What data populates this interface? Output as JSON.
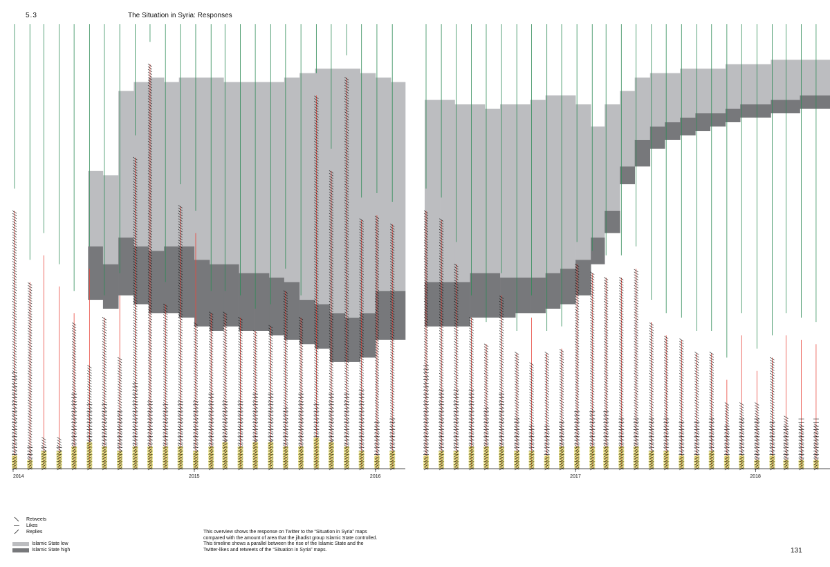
{
  "header": {
    "section_number": "5.3",
    "title": "The Situation in Syria: Responses"
  },
  "legend": {
    "marks": [
      {
        "key": "retweets",
        "label": "Retweets",
        "glyph": "backslash"
      },
      {
        "key": "likes",
        "label": "Likes",
        "glyph": "dash"
      },
      {
        "key": "replies",
        "label": "Replies",
        "glyph": "slash"
      }
    ],
    "areas": [
      {
        "key": "low",
        "label": "Islamic State low",
        "color": "#bcbdc0"
      },
      {
        "key": "high",
        "label": "Islamic State high",
        "color": "#77787b"
      }
    ]
  },
  "caption": "This overview shows the response on Twitter to the “Situation in Syria” maps compared with the amount of area that the jihadist group Islamic State controlled. This timeline shows a parallel between the rise of the Islamic State and the Twitter-likes and retweets of the “Situation in Syria” maps.",
  "page_number": "131",
  "colors": {
    "is_low": "#bcbdc0",
    "is_high": "#77787b",
    "red_line": "#e8463c",
    "green_line": "#2e8b57",
    "yellow": "#f0e040",
    "mark": "#111111"
  },
  "chart_data": {
    "type": "area",
    "panels": [
      {
        "x_start": "2014-01-01",
        "x_end": "2016-03-01",
        "year_ticks": [
          "2014",
          "2015",
          "2016"
        ],
        "stack": [
          {
            "x": "2014-01-01",
            "low_top": 0,
            "high_top": 0,
            "high_bottom": 0
          },
          {
            "x": "2014-02-01",
            "low_top": 0,
            "high_top": 0,
            "high_bottom": 0
          },
          {
            "x": "2014-03-01",
            "low_top": 0,
            "high_top": 0,
            "high_bottom": 0
          },
          {
            "x": "2014-04-01",
            "low_top": 0,
            "high_top": 0,
            "high_bottom": 0
          },
          {
            "x": "2014-05-01",
            "low_top": 0,
            "high_top": 0,
            "high_bottom": 0
          },
          {
            "x": "2014-06-01",
            "low_top": 0.67,
            "high_top": 0.5,
            "high_bottom": 0.38
          },
          {
            "x": "2014-07-01",
            "low_top": 0.66,
            "high_top": 0.46,
            "high_bottom": 0.36
          },
          {
            "x": "2014-08-01",
            "low_top": 0.85,
            "high_top": 0.52,
            "high_bottom": 0.39
          },
          {
            "x": "2014-09-01",
            "low_top": 0.87,
            "high_top": 0.5,
            "high_bottom": 0.37
          },
          {
            "x": "2014-10-01",
            "low_top": 0.88,
            "high_top": 0.49,
            "high_bottom": 0.35
          },
          {
            "x": "2014-11-01",
            "low_top": 0.87,
            "high_top": 0.5,
            "high_bottom": 0.35
          },
          {
            "x": "2014-12-01",
            "low_top": 0.88,
            "high_top": 0.5,
            "high_bottom": 0.34
          },
          {
            "x": "2015-01-01",
            "low_top": 0.88,
            "high_top": 0.47,
            "high_bottom": 0.32
          },
          {
            "x": "2015-02-01",
            "low_top": 0.88,
            "high_top": 0.46,
            "high_bottom": 0.31
          },
          {
            "x": "2015-03-01",
            "low_top": 0.87,
            "high_top": 0.46,
            "high_bottom": 0.32
          },
          {
            "x": "2015-04-01",
            "low_top": 0.87,
            "high_top": 0.44,
            "high_bottom": 0.31
          },
          {
            "x": "2015-05-01",
            "low_top": 0.87,
            "high_top": 0.44,
            "high_bottom": 0.31
          },
          {
            "x": "2015-06-01",
            "low_top": 0.87,
            "high_top": 0.43,
            "high_bottom": 0.3
          },
          {
            "x": "2015-07-01",
            "low_top": 0.88,
            "high_top": 0.42,
            "high_bottom": 0.29
          },
          {
            "x": "2015-08-01",
            "low_top": 0.89,
            "high_top": 0.38,
            "high_bottom": 0.28
          },
          {
            "x": "2015-09-01",
            "low_top": 0.9,
            "high_top": 0.37,
            "high_bottom": 0.27
          },
          {
            "x": "2015-10-01",
            "low_top": 0.9,
            "high_top": 0.35,
            "high_bottom": 0.24
          },
          {
            "x": "2015-11-01",
            "low_top": 0.9,
            "high_top": 0.34,
            "high_bottom": 0.24
          },
          {
            "x": "2015-12-01",
            "low_top": 0.89,
            "high_top": 0.35,
            "high_bottom": 0.25
          },
          {
            "x": "2016-01-01",
            "low_top": 0.88,
            "high_top": 0.4,
            "high_bottom": 0.29
          },
          {
            "x": "2016-02-01",
            "low_top": 0.87,
            "high_top": 0.4,
            "high_bottom": 0.29
          }
        ],
        "posts": [
          {
            "x": "2014-01-01",
            "height": 0.58,
            "retweets": 0.58,
            "likes": 0.22,
            "replies": 0.03,
            "color": "red"
          },
          {
            "x": "2014-02-01",
            "height": 0.42,
            "retweets": 0.42,
            "likes": 0.05,
            "replies": 0.02,
            "color": "red"
          },
          {
            "x": "2014-03-01",
            "height": 0.48,
            "retweets": 0.07,
            "likes": 0.05,
            "replies": 0.04,
            "color": "red"
          },
          {
            "x": "2014-04-01",
            "height": 0.41,
            "retweets": 0.07,
            "likes": 0.05,
            "replies": 0.04,
            "color": "red"
          },
          {
            "x": "2014-05-01",
            "height": 0.35,
            "retweets": 0.33,
            "likes": 0.17,
            "replies": 0.05,
            "color": "red"
          },
          {
            "x": "2014-06-01",
            "height": 0.45,
            "retweets": 0.23,
            "likes": 0.15,
            "replies": 0.06,
            "color": "red"
          },
          {
            "x": "2014-07-01",
            "height": 0.34,
            "retweets": 0.34,
            "likes": 0.15,
            "replies": 0.05,
            "color": "red"
          },
          {
            "x": "2014-08-01",
            "height": 0.39,
            "retweets": 0.25,
            "likes": 0.13,
            "replies": 0.04,
            "color": "red"
          },
          {
            "x": "2014-09-01",
            "height": 0.7,
            "retweets": 0.7,
            "likes": 0.2,
            "replies": 0.05,
            "color": "red"
          },
          {
            "x": "2014-10-01",
            "height": 0.91,
            "retweets": 0.91,
            "likes": 0.16,
            "replies": 0.05,
            "color": "red"
          },
          {
            "x": "2014-11-01",
            "height": 0.37,
            "retweets": 0.37,
            "likes": 0.15,
            "replies": 0.05,
            "color": "red"
          },
          {
            "x": "2014-12-01",
            "height": 0.59,
            "retweets": 0.59,
            "likes": 0.16,
            "replies": 0.05,
            "color": "red"
          },
          {
            "x": "2015-01-01",
            "height": 0.53,
            "retweets": 0.33,
            "likes": 0.16,
            "replies": 0.04,
            "color": "red"
          },
          {
            "x": "2015-02-01",
            "height": 0.35,
            "retweets": 0.35,
            "likes": 0.17,
            "replies": 0.05,
            "color": "red"
          },
          {
            "x": "2015-03-01",
            "height": 0.35,
            "retweets": 0.35,
            "likes": 0.16,
            "replies": 0.06,
            "color": "red"
          },
          {
            "x": "2015-04-01",
            "height": 0.34,
            "retweets": 0.34,
            "likes": 0.16,
            "replies": 0.05,
            "color": "red"
          },
          {
            "x": "2015-05-01",
            "height": 0.31,
            "retweets": 0.31,
            "likes": 0.17,
            "replies": 0.06,
            "color": "red"
          },
          {
            "x": "2015-06-01",
            "height": 0.32,
            "retweets": 0.32,
            "likes": 0.17,
            "replies": 0.06,
            "color": "red"
          },
          {
            "x": "2015-07-01",
            "height": 0.4,
            "retweets": 0.4,
            "likes": 0.14,
            "replies": 0.05,
            "color": "red"
          },
          {
            "x": "2015-08-01",
            "height": 0.34,
            "retweets": 0.34,
            "likes": 0.17,
            "replies": 0.05,
            "color": "red"
          },
          {
            "x": "2015-09-01",
            "height": 0.84,
            "retweets": 0.84,
            "likes": 0.15,
            "replies": 0.07,
            "color": "red"
          },
          {
            "x": "2015-10-01",
            "height": 0.67,
            "retweets": 0.67,
            "likes": 0.17,
            "replies": 0.06,
            "color": "red"
          },
          {
            "x": "2015-11-01",
            "height": 0.88,
            "retweets": 0.88,
            "likes": 0.17,
            "replies": 0.05,
            "color": "red"
          },
          {
            "x": "2015-12-01",
            "height": 0.56,
            "retweets": 0.56,
            "likes": 0.18,
            "replies": 0.04,
            "color": "red"
          },
          {
            "x": "2016-01-01",
            "height": 0.57,
            "retweets": 0.57,
            "likes": 0.11,
            "replies": 0.03,
            "color": "red"
          },
          {
            "x": "2016-02-01",
            "height": 0.55,
            "retweets": 0.55,
            "likes": 0.12,
            "replies": 0.04,
            "color": "red"
          }
        ]
      },
      {
        "x_start": "2016-03-01",
        "x_end": "2018-06-01",
        "year_ticks": [
          "2017",
          "2018"
        ],
        "stack": [
          {
            "x": "2016-03-01",
            "low_top": 0.83,
            "high_top": 0.42,
            "high_bottom": 0.32
          },
          {
            "x": "2016-04-01",
            "low_top": 0.83,
            "high_top": 0.42,
            "high_bottom": 0.32
          },
          {
            "x": "2016-05-01",
            "low_top": 0.82,
            "high_top": 0.42,
            "high_bottom": 0.32
          },
          {
            "x": "2016-06-01",
            "low_top": 0.82,
            "high_top": 0.44,
            "high_bottom": 0.34
          },
          {
            "x": "2016-07-01",
            "low_top": 0.81,
            "high_top": 0.44,
            "high_bottom": 0.34
          },
          {
            "x": "2016-08-01",
            "low_top": 0.82,
            "high_top": 0.43,
            "high_bottom": 0.34
          },
          {
            "x": "2016-09-01",
            "low_top": 0.82,
            "high_top": 0.43,
            "high_bottom": 0.35
          },
          {
            "x": "2016-10-01",
            "low_top": 0.83,
            "high_top": 0.43,
            "high_bottom": 0.35
          },
          {
            "x": "2016-11-01",
            "low_top": 0.84,
            "high_top": 0.44,
            "high_bottom": 0.36
          },
          {
            "x": "2016-12-01",
            "low_top": 0.84,
            "high_top": 0.45,
            "high_bottom": 0.37
          },
          {
            "x": "2017-01-01",
            "low_top": 0.82,
            "high_top": 0.47,
            "high_bottom": 0.39
          },
          {
            "x": "2017-02-01",
            "low_top": 0.77,
            "high_top": 0.52,
            "high_bottom": 0.46
          },
          {
            "x": "2017-03-01",
            "low_top": 0.82,
            "high_top": 0.58,
            "high_bottom": 0.53
          },
          {
            "x": "2017-04-01",
            "low_top": 0.85,
            "high_top": 0.68,
            "high_bottom": 0.64
          },
          {
            "x": "2017-05-01",
            "low_top": 0.88,
            "high_top": 0.74,
            "high_bottom": 0.68
          },
          {
            "x": "2017-06-01",
            "low_top": 0.89,
            "high_top": 0.77,
            "high_bottom": 0.72
          },
          {
            "x": "2017-07-01",
            "low_top": 0.89,
            "high_top": 0.78,
            "high_bottom": 0.74
          },
          {
            "x": "2017-08-01",
            "low_top": 0.9,
            "high_top": 0.79,
            "high_bottom": 0.75
          },
          {
            "x": "2017-09-01",
            "low_top": 0.9,
            "high_top": 0.8,
            "high_bottom": 0.76
          },
          {
            "x": "2017-10-01",
            "low_top": 0.9,
            "high_top": 0.8,
            "high_bottom": 0.77
          },
          {
            "x": "2017-11-01",
            "low_top": 0.91,
            "high_top": 0.81,
            "high_bottom": 0.78
          },
          {
            "x": "2017-12-01",
            "low_top": 0.91,
            "high_top": 0.82,
            "high_bottom": 0.79
          },
          {
            "x": "2018-01-01",
            "low_top": 0.91,
            "high_top": 0.82,
            "high_bottom": 0.79
          },
          {
            "x": "2018-02-01",
            "low_top": 0.92,
            "high_top": 0.83,
            "high_bottom": 0.8
          },
          {
            "x": "2018-03-01",
            "low_top": 0.92,
            "high_top": 0.83,
            "high_bottom": 0.8
          },
          {
            "x": "2018-04-01",
            "low_top": 0.92,
            "high_top": 0.84,
            "high_bottom": 0.81
          },
          {
            "x": "2018-05-01",
            "low_top": 0.92,
            "high_top": 0.84,
            "high_bottom": 0.81
          }
        ],
        "posts": [
          {
            "x": "2016-03-01",
            "height": 0.58,
            "retweets": 0.58,
            "likes": 0.24,
            "replies": 0.03,
            "color": "red"
          },
          {
            "x": "2016-04-01",
            "height": 0.56,
            "retweets": 0.56,
            "likes": 0.18,
            "replies": 0.04,
            "color": "red"
          },
          {
            "x": "2016-05-01",
            "height": 0.46,
            "retweets": 0.46,
            "likes": 0.18,
            "replies": 0.04,
            "color": "red"
          },
          {
            "x": "2016-06-01",
            "height": 0.34,
            "retweets": 0.34,
            "likes": 0.18,
            "replies": 0.05,
            "color": "red"
          },
          {
            "x": "2016-07-01",
            "height": 0.28,
            "retweets": 0.28,
            "likes": 0.14,
            "replies": 0.05,
            "color": "red"
          },
          {
            "x": "2016-08-01",
            "height": 0.39,
            "retweets": 0.39,
            "likes": 0.17,
            "replies": 0.05,
            "color": "red"
          },
          {
            "x": "2016-09-01",
            "height": 0.26,
            "retweets": 0.26,
            "likes": 0.12,
            "replies": 0.04,
            "color": "red"
          },
          {
            "x": "2016-10-01",
            "height": 0.34,
            "retweets": 0.24,
            "likes": 0.1,
            "replies": 0.04,
            "color": "red"
          },
          {
            "x": "2016-11-01",
            "height": 0.26,
            "retweets": 0.26,
            "likes": 0.1,
            "replies": 0.03,
            "color": "red"
          },
          {
            "x": "2016-12-01",
            "height": 0.27,
            "retweets": 0.27,
            "likes": 0.11,
            "replies": 0.05,
            "color": "red"
          },
          {
            "x": "2017-01-01",
            "height": 0.46,
            "retweets": 0.46,
            "likes": 0.13,
            "replies": 0.05,
            "color": "red"
          },
          {
            "x": "2017-02-01",
            "height": 0.44,
            "retweets": 0.44,
            "likes": 0.13,
            "replies": 0.05,
            "color": "red"
          },
          {
            "x": "2017-03-01",
            "height": 0.43,
            "retweets": 0.43,
            "likes": 0.13,
            "replies": 0.05,
            "color": "red"
          },
          {
            "x": "2017-04-01",
            "height": 0.43,
            "retweets": 0.43,
            "likes": 0.12,
            "replies": 0.05,
            "color": "red"
          },
          {
            "x": "2017-05-01",
            "height": 0.45,
            "retweets": 0.45,
            "likes": 0.12,
            "replies": 0.05,
            "color": "red"
          },
          {
            "x": "2017-06-01",
            "height": 0.33,
            "retweets": 0.33,
            "likes": 0.12,
            "replies": 0.04,
            "color": "red"
          },
          {
            "x": "2017-07-01",
            "height": 0.3,
            "retweets": 0.3,
            "likes": 0.12,
            "replies": 0.04,
            "color": "red"
          },
          {
            "x": "2017-08-01",
            "height": 0.29,
            "retweets": 0.29,
            "likes": 0.11,
            "replies": 0.03,
            "color": "red"
          },
          {
            "x": "2017-09-01",
            "height": 0.26,
            "retweets": 0.26,
            "likes": 0.11,
            "replies": 0.03,
            "color": "red"
          },
          {
            "x": "2017-10-01",
            "height": 0.26,
            "retweets": 0.26,
            "likes": 0.12,
            "replies": 0.04,
            "color": "red"
          },
          {
            "x": "2017-11-01",
            "height": 0.2,
            "retweets": 0.15,
            "likes": 0.1,
            "replies": 0.03,
            "color": "red"
          },
          {
            "x": "2017-12-01",
            "height": 0.3,
            "retweets": 0.15,
            "likes": 0.12,
            "replies": 0.03,
            "color": "red"
          },
          {
            "x": "2018-01-01",
            "height": 0.22,
            "retweets": 0.15,
            "likes": 0.12,
            "replies": 0.02,
            "color": "red"
          },
          {
            "x": "2018-02-01",
            "height": 0.25,
            "retweets": 0.25,
            "likes": 0.11,
            "replies": 0.03,
            "color": "red"
          },
          {
            "x": "2018-03-01",
            "height": 0.3,
            "retweets": 0.12,
            "likes": 0.1,
            "replies": 0.02,
            "color": "red"
          },
          {
            "x": "2018-04-01",
            "height": 0.29,
            "retweets": 0.1,
            "likes": 0.12,
            "replies": 0.02,
            "color": "red"
          },
          {
            "x": "2018-05-01",
            "height": 0.28,
            "retweets": 0.1,
            "likes": 0.12,
            "replies": 0.02,
            "color": "red"
          }
        ]
      }
    ],
    "legend_placement": "bottom-left",
    "grid": false
  }
}
